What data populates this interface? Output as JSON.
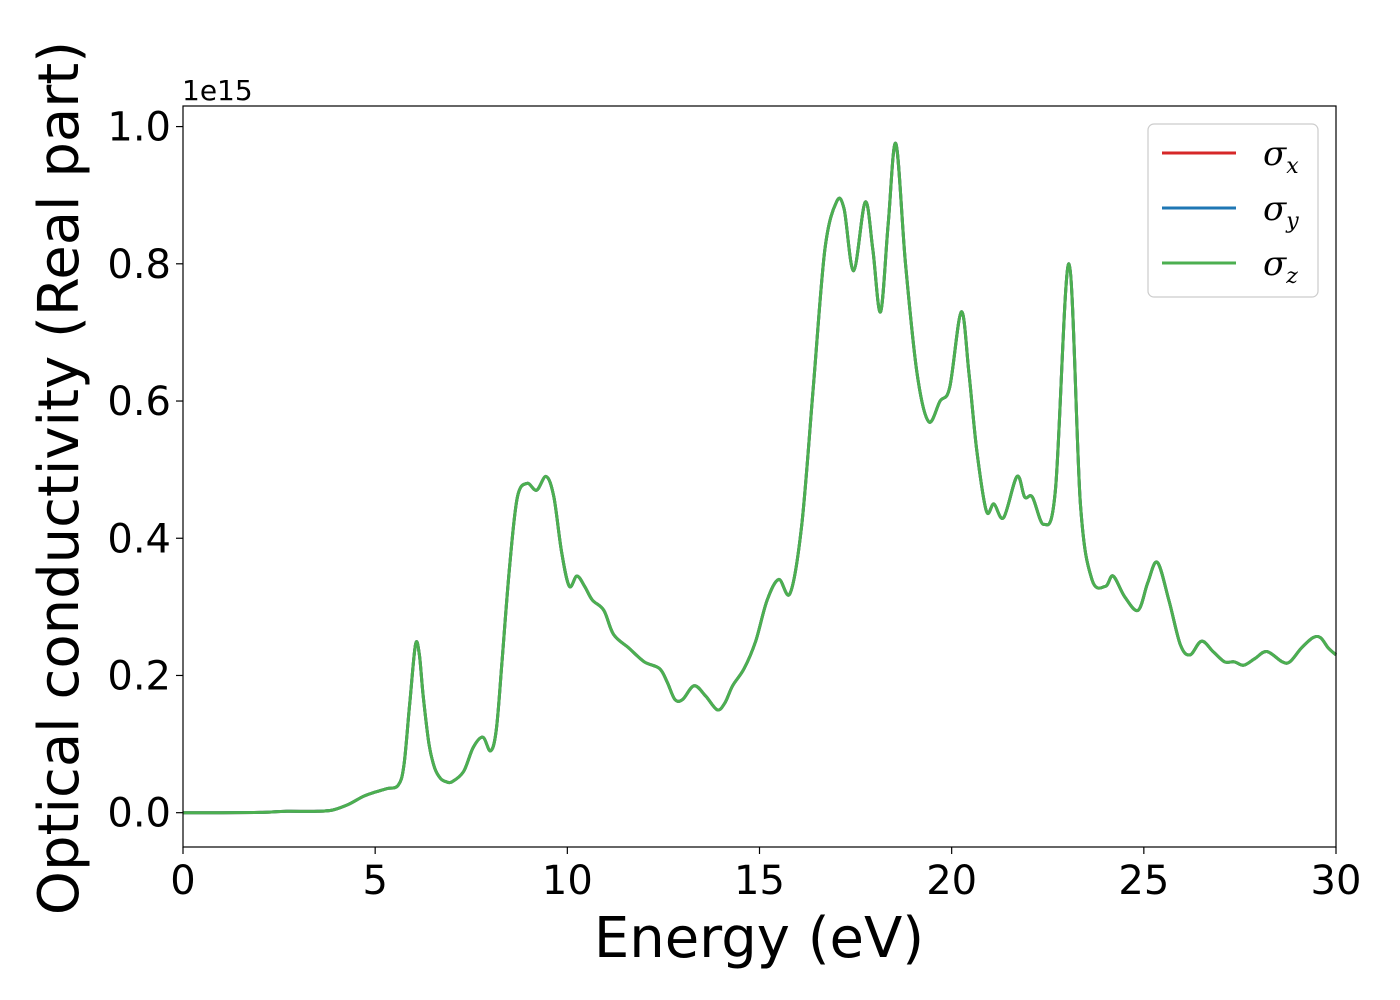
{
  "chart_data": {
    "type": "line",
    "xlabel": "Energy (eV)",
    "ylabel": "Optical conductivity (Real part)",
    "y_offset_text": "1e15",
    "xlim": [
      0,
      30
    ],
    "ylim": [
      -0.05,
      1.03
    ],
    "x_ticks": [
      0,
      5,
      10,
      15,
      20,
      25,
      30
    ],
    "x_tick_labels": [
      "0",
      "5",
      "10",
      "15",
      "20",
      "25",
      "30"
    ],
    "y_ticks": [
      0.0,
      0.2,
      0.4,
      0.6,
      0.8,
      1.0
    ],
    "y_tick_labels": [
      "0.0",
      "0.2",
      "0.4",
      "0.6",
      "0.8",
      "1.0"
    ],
    "grid": false,
    "legend_position": "top-right",
    "series": [
      {
        "name": "σx",
        "symbol": "σ",
        "subscript": "x",
        "color": "#d62728",
        "x": [
          0,
          1,
          2,
          2.7,
          3.5,
          3.9,
          4.3,
          4.7,
          5.0,
          5.3,
          5.6,
          5.75,
          5.9,
          6.05,
          6.15,
          6.25,
          6.4,
          6.55,
          6.7,
          6.85,
          7.0,
          7.3,
          7.55,
          7.8,
          8.0,
          8.15,
          8.3,
          8.5,
          8.7,
          8.95,
          9.2,
          9.45,
          9.65,
          9.85,
          10.05,
          10.25,
          10.45,
          10.65,
          10.95,
          11.2,
          11.6,
          12.0,
          12.4,
          12.6,
          12.8,
          13.0,
          13.3,
          13.6,
          13.9,
          14.1,
          14.3,
          14.6,
          14.9,
          15.2,
          15.5,
          15.8,
          16.1,
          16.4,
          16.7,
          17.0,
          17.2,
          17.45,
          17.75,
          17.95,
          18.15,
          18.35,
          18.55,
          18.8,
          19.1,
          19.4,
          19.7,
          19.95,
          20.25,
          20.45,
          20.65,
          20.9,
          21.1,
          21.35,
          21.7,
          21.9,
          22.1,
          22.4,
          22.7,
          23.05,
          23.35,
          23.65,
          24.0,
          24.2,
          24.5,
          24.85,
          25.1,
          25.35,
          25.65,
          25.95,
          26.2,
          26.5,
          26.8,
          27.1,
          27.35,
          27.6,
          27.9,
          28.2,
          28.6,
          28.8,
          29.1,
          29.4,
          29.6,
          29.8,
          30.0
        ],
        "values": [
          0,
          0,
          0.0005,
          0.002,
          0.002,
          0.004,
          0.012,
          0.024,
          0.03,
          0.035,
          0.04,
          0.07,
          0.16,
          0.245,
          0.23,
          0.17,
          0.1,
          0.065,
          0.05,
          0.045,
          0.045,
          0.06,
          0.095,
          0.11,
          0.09,
          0.12,
          0.22,
          0.36,
          0.46,
          0.48,
          0.47,
          0.49,
          0.46,
          0.38,
          0.33,
          0.345,
          0.33,
          0.31,
          0.295,
          0.26,
          0.24,
          0.22,
          0.21,
          0.19,
          0.165,
          0.165,
          0.185,
          0.17,
          0.15,
          0.16,
          0.185,
          0.21,
          0.25,
          0.31,
          0.34,
          0.32,
          0.42,
          0.62,
          0.82,
          0.89,
          0.88,
          0.79,
          0.89,
          0.82,
          0.73,
          0.86,
          0.975,
          0.8,
          0.64,
          0.57,
          0.6,
          0.62,
          0.73,
          0.64,
          0.53,
          0.44,
          0.45,
          0.43,
          0.49,
          0.46,
          0.46,
          0.42,
          0.47,
          0.8,
          0.45,
          0.34,
          0.33,
          0.345,
          0.315,
          0.295,
          0.335,
          0.365,
          0.31,
          0.245,
          0.23,
          0.25,
          0.235,
          0.22,
          0.22,
          0.215,
          0.225,
          0.235,
          0.22,
          0.22,
          0.24,
          0.255,
          0.255,
          0.24,
          0.23
        ]
      },
      {
        "name": "σy",
        "symbol": "σ",
        "subscript": "y",
        "color": "#1f77b4",
        "x": [
          0,
          1,
          2,
          2.7,
          3.5,
          3.9,
          4.3,
          4.7,
          5.0,
          5.3,
          5.6,
          5.75,
          5.9,
          6.05,
          6.15,
          6.25,
          6.4,
          6.55,
          6.7,
          6.85,
          7.0,
          7.3,
          7.55,
          7.8,
          8.0,
          8.15,
          8.3,
          8.5,
          8.7,
          8.95,
          9.2,
          9.45,
          9.65,
          9.85,
          10.05,
          10.25,
          10.45,
          10.65,
          10.95,
          11.2,
          11.6,
          12.0,
          12.4,
          12.6,
          12.8,
          13.0,
          13.3,
          13.6,
          13.9,
          14.1,
          14.3,
          14.6,
          14.9,
          15.2,
          15.5,
          15.8,
          16.1,
          16.4,
          16.7,
          17.0,
          17.2,
          17.45,
          17.75,
          17.95,
          18.15,
          18.35,
          18.55,
          18.8,
          19.1,
          19.4,
          19.7,
          19.95,
          20.25,
          20.45,
          20.65,
          20.9,
          21.1,
          21.35,
          21.7,
          21.9,
          22.1,
          22.4,
          22.7,
          23.05,
          23.35,
          23.65,
          24.0,
          24.2,
          24.5,
          24.85,
          25.1,
          25.35,
          25.65,
          25.95,
          26.2,
          26.5,
          26.8,
          27.1,
          27.35,
          27.6,
          27.9,
          28.2,
          28.6,
          28.8,
          29.1,
          29.4,
          29.6,
          29.8,
          30.0
        ],
        "values": [
          0,
          0,
          0.0005,
          0.002,
          0.002,
          0.004,
          0.012,
          0.024,
          0.03,
          0.035,
          0.04,
          0.07,
          0.16,
          0.245,
          0.23,
          0.17,
          0.1,
          0.065,
          0.05,
          0.045,
          0.045,
          0.06,
          0.095,
          0.11,
          0.09,
          0.12,
          0.22,
          0.36,
          0.46,
          0.48,
          0.47,
          0.49,
          0.46,
          0.38,
          0.33,
          0.345,
          0.33,
          0.31,
          0.295,
          0.26,
          0.24,
          0.22,
          0.21,
          0.19,
          0.165,
          0.165,
          0.185,
          0.17,
          0.15,
          0.16,
          0.185,
          0.21,
          0.25,
          0.31,
          0.34,
          0.32,
          0.42,
          0.62,
          0.82,
          0.89,
          0.88,
          0.79,
          0.89,
          0.82,
          0.73,
          0.86,
          0.975,
          0.8,
          0.64,
          0.57,
          0.6,
          0.62,
          0.73,
          0.64,
          0.53,
          0.44,
          0.45,
          0.43,
          0.49,
          0.46,
          0.46,
          0.42,
          0.47,
          0.8,
          0.45,
          0.34,
          0.33,
          0.345,
          0.315,
          0.295,
          0.335,
          0.365,
          0.31,
          0.245,
          0.23,
          0.25,
          0.235,
          0.22,
          0.22,
          0.215,
          0.225,
          0.235,
          0.22,
          0.22,
          0.24,
          0.255,
          0.255,
          0.24,
          0.23
        ]
      },
      {
        "name": "σz",
        "symbol": "σ",
        "subscript": "z",
        "color": "#4caf50",
        "x": [
          0,
          1,
          2,
          2.7,
          3.5,
          3.9,
          4.3,
          4.7,
          5.0,
          5.3,
          5.6,
          5.75,
          5.9,
          6.05,
          6.15,
          6.25,
          6.4,
          6.55,
          6.7,
          6.85,
          7.0,
          7.3,
          7.55,
          7.8,
          8.0,
          8.15,
          8.3,
          8.5,
          8.7,
          8.95,
          9.2,
          9.45,
          9.65,
          9.85,
          10.05,
          10.25,
          10.45,
          10.65,
          10.95,
          11.2,
          11.6,
          12.0,
          12.4,
          12.6,
          12.8,
          13.0,
          13.3,
          13.6,
          13.9,
          14.1,
          14.3,
          14.6,
          14.9,
          15.2,
          15.5,
          15.8,
          16.1,
          16.4,
          16.7,
          17.0,
          17.2,
          17.45,
          17.75,
          17.95,
          18.15,
          18.35,
          18.55,
          18.8,
          19.1,
          19.4,
          19.7,
          19.95,
          20.25,
          20.45,
          20.65,
          20.9,
          21.1,
          21.35,
          21.7,
          21.9,
          22.1,
          22.4,
          22.7,
          23.05,
          23.35,
          23.65,
          24.0,
          24.2,
          24.5,
          24.85,
          25.1,
          25.35,
          25.65,
          25.95,
          26.2,
          26.5,
          26.8,
          27.1,
          27.35,
          27.6,
          27.9,
          28.2,
          28.6,
          28.8,
          29.1,
          29.4,
          29.6,
          29.8,
          30.0
        ],
        "values": [
          0,
          0,
          0.0005,
          0.002,
          0.002,
          0.004,
          0.012,
          0.024,
          0.03,
          0.035,
          0.04,
          0.07,
          0.16,
          0.245,
          0.23,
          0.17,
          0.1,
          0.065,
          0.05,
          0.045,
          0.045,
          0.06,
          0.095,
          0.11,
          0.09,
          0.12,
          0.22,
          0.36,
          0.46,
          0.48,
          0.47,
          0.49,
          0.46,
          0.38,
          0.33,
          0.345,
          0.33,
          0.31,
          0.295,
          0.26,
          0.24,
          0.22,
          0.21,
          0.19,
          0.165,
          0.165,
          0.185,
          0.17,
          0.15,
          0.16,
          0.185,
          0.21,
          0.25,
          0.31,
          0.34,
          0.32,
          0.42,
          0.62,
          0.82,
          0.89,
          0.88,
          0.79,
          0.89,
          0.82,
          0.73,
          0.86,
          0.975,
          0.8,
          0.64,
          0.57,
          0.6,
          0.62,
          0.73,
          0.64,
          0.53,
          0.44,
          0.45,
          0.43,
          0.49,
          0.46,
          0.46,
          0.42,
          0.47,
          0.8,
          0.45,
          0.34,
          0.33,
          0.345,
          0.315,
          0.295,
          0.335,
          0.365,
          0.31,
          0.245,
          0.23,
          0.25,
          0.235,
          0.22,
          0.22,
          0.215,
          0.225,
          0.235,
          0.22,
          0.22,
          0.24,
          0.255,
          0.255,
          0.24,
          0.23
        ]
      }
    ]
  }
}
